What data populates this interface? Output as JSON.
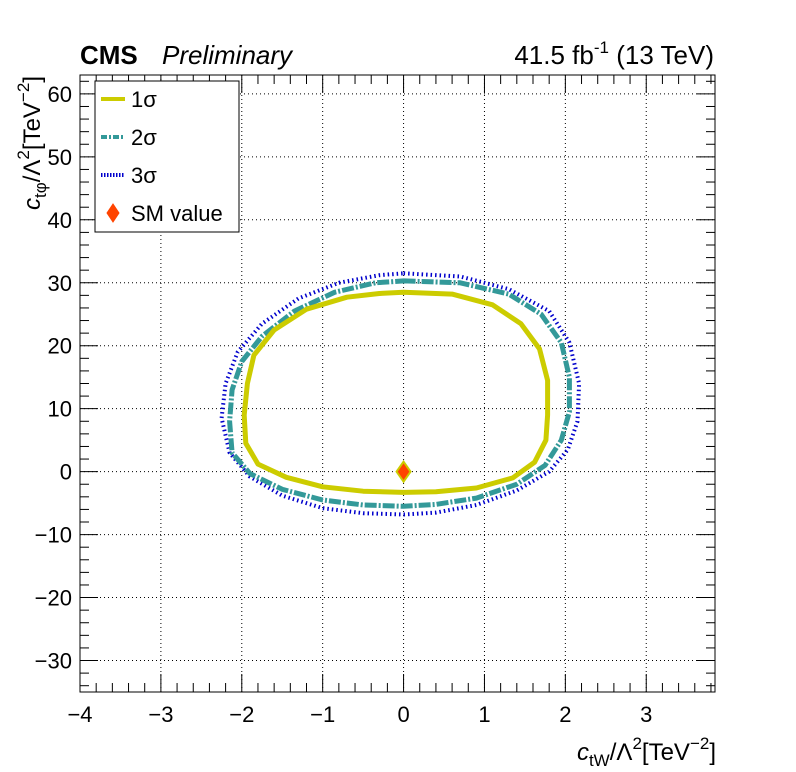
{
  "header": {
    "experiment": "CMS",
    "status": "Preliminary",
    "lumi_value": "41.5 fb",
    "lumi_exp": "-1",
    "energy": " (13 TeV)"
  },
  "axes": {
    "x_title_var": "c",
    "x_title_sub": "tW",
    "x_title_rest": "/Λ",
    "x_title_sup": "2",
    "x_title_unit": "[TeV",
    "x_title_unit_sup": "−2",
    "x_title_close": "]",
    "y_title_var": "c",
    "y_title_sub": "tφ",
    "y_title_rest": "/Λ",
    "y_title_sup": "2",
    "y_title_unit": "[TeV",
    "y_title_unit_sup": "−2",
    "y_title_close": "]"
  },
  "legend": {
    "placement": "top-left",
    "items": [
      {
        "label": "1σ",
        "color": "#cccc00",
        "style": "solid"
      },
      {
        "label": "2σ",
        "color": "#339999",
        "style": "dash-dot"
      },
      {
        "label": "3σ",
        "color": "#0000cc",
        "style": "dotted"
      },
      {
        "label": "SM value",
        "color": "#ff4400",
        "style": "diamond"
      }
    ]
  },
  "chart_data": {
    "type": "scatter",
    "xlim": [
      -4,
      3.85
    ],
    "ylim": [
      -35,
      63
    ],
    "grid": true,
    "x_ticks": [
      -4,
      -3,
      -2,
      -1,
      0,
      1,
      2,
      3
    ],
    "y_ticks": [
      -30,
      -20,
      -10,
      0,
      10,
      20,
      30,
      40,
      50,
      60
    ],
    "xlabel": "c_tW/Λ^2[TeV^-2]",
    "ylabel": "c_tφ/Λ^2[TeV^-2]",
    "sm_point": {
      "x": 0,
      "y": 0,
      "name": "SM value",
      "color": "#ff4400"
    },
    "contours": [
      {
        "name": "1σ",
        "color": "#cccc00",
        "points": [
          [
            0,
            28.5
          ],
          [
            0.6,
            28.2
          ],
          [
            1.1,
            26.5
          ],
          [
            1.45,
            23.5
          ],
          [
            1.68,
            19.5
          ],
          [
            1.78,
            14.5
          ],
          [
            1.78,
            9.0
          ],
          [
            1.76,
            5.0
          ],
          [
            1.62,
            1.5
          ],
          [
            1.35,
            -1.0
          ],
          [
            0.9,
            -2.6
          ],
          [
            0.4,
            -3.2
          ],
          [
            0,
            -3.3
          ],
          [
            -0.5,
            -3.1
          ],
          [
            -1.0,
            -2.4
          ],
          [
            -1.45,
            -0.9
          ],
          [
            -1.8,
            1.2
          ],
          [
            -1.95,
            4.5
          ],
          [
            -1.97,
            9.0
          ],
          [
            -1.93,
            14.0
          ],
          [
            -1.85,
            18.5
          ],
          [
            -1.6,
            22.5
          ],
          [
            -1.2,
            25.8
          ],
          [
            -0.7,
            27.7
          ],
          [
            -0.3,
            28.3
          ],
          [
            0,
            28.5
          ]
        ]
      },
      {
        "name": "2σ",
        "color": "#339999",
        "points": [
          [
            0,
            30.3
          ],
          [
            0.7,
            30.0
          ],
          [
            1.3,
            28.2
          ],
          [
            1.7,
            25.0
          ],
          [
            1.95,
            20.5
          ],
          [
            2.05,
            15.0
          ],
          [
            2.05,
            9.5
          ],
          [
            1.95,
            5.0
          ],
          [
            1.75,
            1.0
          ],
          [
            1.4,
            -2.0
          ],
          [
            0.9,
            -4.2
          ],
          [
            0.4,
            -5.2
          ],
          [
            0,
            -5.5
          ],
          [
            -0.5,
            -5.3
          ],
          [
            -1.0,
            -4.5
          ],
          [
            -1.5,
            -2.8
          ],
          [
            -1.9,
            -0.3
          ],
          [
            -2.12,
            3.0
          ],
          [
            -2.15,
            8.0
          ],
          [
            -2.12,
            13.0
          ],
          [
            -2.0,
            17.5
          ],
          [
            -1.75,
            21.5
          ],
          [
            -1.35,
            25.5
          ],
          [
            -0.85,
            28.5
          ],
          [
            -0.35,
            30.0
          ],
          [
            0,
            30.3
          ]
        ]
      },
      {
        "name": "3σ",
        "color": "#0000cc",
        "points": [
          [
            0,
            31.5
          ],
          [
            0.7,
            31.0
          ],
          [
            1.3,
            29.0
          ],
          [
            1.8,
            25.5
          ],
          [
            2.05,
            20.5
          ],
          [
            2.17,
            14.0
          ],
          [
            2.15,
            8.0
          ],
          [
            2.03,
            3.5
          ],
          [
            1.8,
            0.0
          ],
          [
            1.4,
            -3.0
          ],
          [
            0.9,
            -5.3
          ],
          [
            0.4,
            -6.5
          ],
          [
            0,
            -6.8
          ],
          [
            -0.5,
            -6.6
          ],
          [
            -1.0,
            -5.8
          ],
          [
            -1.5,
            -3.8
          ],
          [
            -1.9,
            -0.8
          ],
          [
            -2.15,
            3.0
          ],
          [
            -2.25,
            8.5
          ],
          [
            -2.2,
            14.0
          ],
          [
            -2.05,
            19.0
          ],
          [
            -1.75,
            23.5
          ],
          [
            -1.3,
            27.5
          ],
          [
            -0.8,
            30.0
          ],
          [
            -0.3,
            31.2
          ],
          [
            0,
            31.5
          ]
        ]
      }
    ]
  }
}
